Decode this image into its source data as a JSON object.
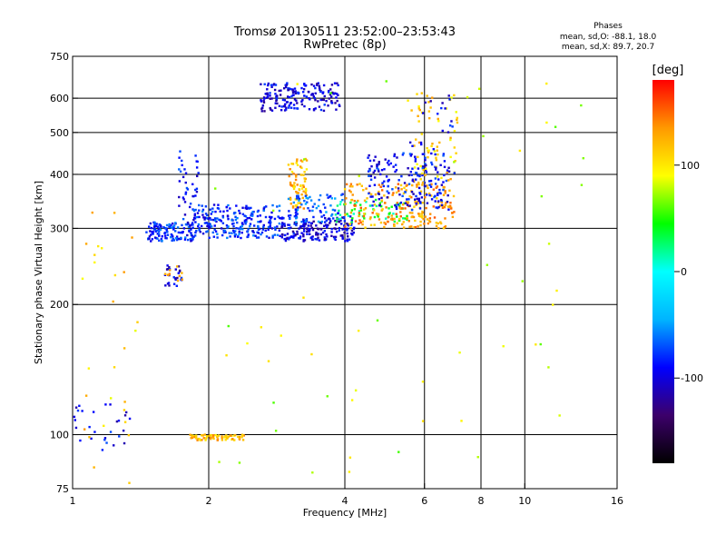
{
  "chart_data": {
    "type": "scatter",
    "title": "Tromsø 20130511 23:52:00–23:53:43",
    "subtitle": "RwPretec (8p)",
    "stats": {
      "heading": "Phases",
      "line_o": "mean, sd,O: -88.1, 18.0",
      "line_x": "mean, sd,X: 89.7, 20.7"
    },
    "xlabel": "Frequency [MHz]",
    "ylabel": "Stationary phase Virtual Height [km]",
    "x_scale": "log",
    "y_scale": "log",
    "xlim": [
      1,
      16
    ],
    "ylim": [
      75,
      750
    ],
    "x_ticks": [
      1,
      2,
      4,
      6,
      8,
      10,
      16
    ],
    "x_tick_labels": [
      "1",
      "2",
      "4",
      "6",
      "8",
      "10",
      "16"
    ],
    "x_gridlines": [
      2,
      4,
      6,
      8,
      10
    ],
    "y_ticks": [
      75,
      100,
      200,
      300,
      400,
      500,
      600,
      750
    ],
    "y_tick_labels": [
      "75",
      "100",
      "200",
      "300",
      "400",
      "500",
      "600",
      "750"
    ],
    "y_gridlines": [
      100,
      200,
      300,
      400,
      500,
      600
    ],
    "grid": true,
    "colorbar": {
      "label": "[deg]",
      "range": [
        -180,
        180
      ],
      "ticks": [
        100,
        0,
        -100
      ],
      "tick_labels": [
        "100",
        "0",
        "-100"
      ]
    },
    "colormap": [
      "#000000",
      "#3c006a",
      "#0000ff",
      "#00b4ff",
      "#00ffff",
      "#00ff00",
      "#ffff00",
      "#ff9900",
      "#ff0000"
    ],
    "clusters": [
      {
        "x": [
          1.0,
          1.35
        ],
        "y": [
          92,
          118
        ],
        "phase": -95,
        "count": 28
      },
      {
        "x": [
          1.05,
          1.4
        ],
        "y": [
          75,
          330
        ],
        "phase": 110,
        "count": 28
      },
      {
        "x": [
          1.45,
          1.85
        ],
        "y": [
          280,
          310
        ],
        "phase": -80,
        "count": 120
      },
      {
        "x": [
          1.6,
          1.75
        ],
        "y": [
          220,
          250
        ],
        "phase": -100,
        "count": 25
      },
      {
        "x": [
          1.6,
          1.75
        ],
        "y": [
          225,
          245
        ],
        "phase": 120,
        "count": 10
      },
      {
        "x": [
          1.7,
          1.9
        ],
        "y": [
          290,
          460
        ],
        "phase": -90,
        "count": 45
      },
      {
        "x": [
          1.8,
          2.4
        ],
        "y": [
          97,
          100
        ],
        "phase": 120,
        "count": 70
      },
      {
        "x": [
          1.85,
          2.9
        ],
        "y": [
          285,
          340
        ],
        "phase": -80,
        "count": 240
      },
      {
        "x": [
          2.6,
          3.9
        ],
        "y": [
          560,
          650
        ],
        "phase": -100,
        "count": 180
      },
      {
        "x": [
          3.0,
          3.3
        ],
        "y": [
          330,
          440
        ],
        "phase": 120,
        "count": 70
      },
      {
        "x": [
          2.9,
          4.2
        ],
        "y": [
          280,
          320
        ],
        "phase": -100,
        "count": 200
      },
      {
        "x": [
          3.0,
          4.0
        ],
        "y": [
          310,
          360
        ],
        "phase": -70,
        "count": 70
      },
      {
        "x": [
          3.8,
          5.5
        ],
        "y": [
          310,
          350
        ],
        "phase": 30,
        "count": 60
      },
      {
        "x": [
          4.0,
          7.0
        ],
        "y": [
          300,
          380
        ],
        "phase": 130,
        "count": 220
      },
      {
        "x": [
          4.5,
          6.8
        ],
        "y": [
          330,
          450
        ],
        "phase": -90,
        "count": 160
      },
      {
        "x": [
          5.5,
          7.1
        ],
        "y": [
          380,
          620
        ],
        "phase": 110,
        "count": 70
      },
      {
        "x": [
          5.5,
          7.0
        ],
        "y": [
          330,
          620
        ],
        "phase": -95,
        "count": 50
      },
      {
        "x": [
          2.0,
          14.0
        ],
        "y": [
          78,
          700
        ],
        "phase": 80,
        "count": 55
      }
    ]
  }
}
